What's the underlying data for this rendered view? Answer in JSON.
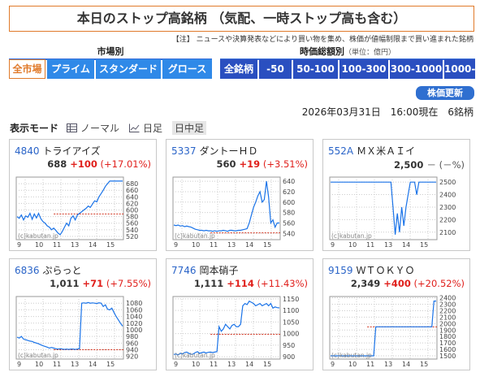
{
  "title": "本日のストップ高銘柄 （気配、一時ストップ高も含む）",
  "note": "【注】 ニュースや決算発表などにより買い物を集め、株価が値幅制限まで買い進まれた銘柄",
  "market": {
    "heading": "市場別",
    "buttons": [
      "全市場",
      "プライム",
      "スタンダード",
      "グロース"
    ],
    "active": 0
  },
  "marketcap": {
    "heading": "時価総額別",
    "unit": "（単位：億円）",
    "buttons": [
      "全銘柄",
      "-50",
      "50-100",
      "100-300",
      "300-1000",
      "1000-"
    ]
  },
  "refresh_label": "株価更新",
  "datetime": "2026年03月31日　16:00現在　6銘柄",
  "mode": {
    "label": "表示モード",
    "options": [
      "ノーマル",
      "日足",
      "日中足"
    ],
    "selected": 2
  },
  "colors": {
    "line": "#1a73e8",
    "ref": "#d0301c",
    "up": "#e0201c",
    "accent": "#e07a2a"
  },
  "x_ticks": [
    "9",
    "10",
    "11",
    "13",
    "14",
    "15"
  ],
  "watermark": "(c)kabutan.jp",
  "stocks": [
    {
      "code": "4840",
      "name": "トライアイズ",
      "price": "688",
      "change": "+100",
      "pct": "(+17.01%)",
      "chart_data": {
        "type": "line",
        "ylim": [
          510,
          700
        ],
        "yticks": [
          520,
          540,
          560,
          580,
          600,
          620,
          640,
          660,
          680
        ],
        "ref": 588,
        "values": [
          580,
          575,
          585,
          570,
          582,
          578,
          590,
          572,
          588,
          576,
          590,
          574,
          565,
          560,
          552,
          548,
          540,
          545,
          538,
          530,
          525,
          535,
          548,
          560,
          552,
          575,
          582,
          570,
          585,
          590,
          595,
          600,
          605,
          612,
          608,
          618,
          628,
          625,
          640,
          650,
          660,
          672,
          680,
          688,
          688,
          688,
          688,
          688,
          688,
          688
        ]
      }
    },
    {
      "code": "5337",
      "name": "ダントーＨＤ",
      "price": "560",
      "change": "+19",
      "pct": "(+3.51%)",
      "chart_data": {
        "type": "line",
        "ylim": [
          528,
          648
        ],
        "yticks": [
          540,
          560,
          580,
          600,
          620,
          640
        ],
        "ref": 541,
        "values": [
          556,
          555,
          556,
          554,
          555,
          553,
          554,
          553,
          552,
          550,
          548,
          547,
          546,
          546,
          545,
          546,
          545,
          545,
          544,
          545,
          544,
          545,
          545,
          546,
          545,
          544,
          546,
          546,
          545,
          545,
          546,
          546,
          547,
          548,
          549,
          560,
          575,
          590,
          600,
          612,
          620,
          600,
          605,
          640,
          610,
          560,
          566,
          552,
          560,
          560
        ]
      }
    },
    {
      "code": "552A",
      "name": "ＭＸ米ＡＩイ",
      "price": "2,500",
      "change": "－",
      "pct": "(－%)",
      "chart_data": {
        "type": "line",
        "ylim": [
          2040,
          2540
        ],
        "yticks": [
          2100,
          2200,
          2300,
          2400,
          2500
        ],
        "ref": null,
        "values": [
          2500,
          2500,
          2500,
          2500,
          2500,
          2500,
          2500,
          2500,
          2500,
          2500,
          2500,
          2500,
          2500,
          2500,
          2500,
          2500,
          2500,
          2500,
          2500,
          2500,
          2500,
          2500,
          2500,
          2500,
          2500,
          2500,
          2500,
          2500,
          2500,
          2300,
          2080,
          2250,
          2100,
          2300,
          2150,
          2300,
          2400,
          2500,
          2500,
          2500,
          2400,
          2500,
          2500,
          2500,
          2500,
          2500,
          2500,
          2500,
          2500,
          2500
        ]
      }
    },
    {
      "code": "6836",
      "name": "ぷらっと",
      "price": "1,011",
      "change": "+71",
      "pct": "(+7.55%)",
      "chart_data": {
        "type": "line",
        "ylim": [
          912,
          1100
        ],
        "yticks": [
          920,
          940,
          960,
          980,
          1000,
          1020,
          1040,
          1060,
          1080
        ],
        "ref": 940,
        "values": [
          978,
          975,
          980,
          972,
          970,
          968,
          966,
          965,
          962,
          960,
          958,
          955,
          952,
          950,
          948,
          945,
          947,
          945,
          943,
          942,
          943,
          942,
          941,
          942,
          941,
          942,
          942,
          941,
          942,
          943,
          1080,
          1081,
          1080,
          1082,
          1080,
          1081,
          1080,
          1079,
          1081,
          1080,
          1070,
          1075,
          1062,
          1060,
          1065,
          1052,
          1040,
          1030,
          1020,
          1011
        ]
      }
    },
    {
      "code": "7746",
      "name": "岡本硝子",
      "price": "1,111",
      "change": "+114",
      "pct": "(+11.43%)",
      "chart_data": {
        "type": "line",
        "ylim": [
          890,
          1160
        ],
        "yticks": [
          900,
          950,
          1000,
          1050,
          1100,
          1150
        ],
        "ref": 997,
        "values": [
          910,
          912,
          908,
          915,
          912,
          918,
          920,
          915,
          910,
          912,
          918,
          922,
          915,
          918,
          920,
          916,
          919,
          920,
          918,
          920,
          922,
          1030,
          1010,
          1020,
          1040,
          1030,
          1020,
          1035,
          1040,
          1030,
          1030,
          1040,
          1120,
          1130,
          1125,
          1140,
          1135,
          1130,
          1120,
          1125,
          1130,
          1120,
          1125,
          1130,
          1120,
          1130,
          1110,
          1115,
          1112,
          1111
        ]
      }
    },
    {
      "code": "9159",
      "name": "ＷＴＯＫＹＯ",
      "price": "2,349",
      "change": "+400",
      "pct": "(+20.52%)",
      "chart_data": {
        "type": "line",
        "ylim": [
          1450,
          2420
        ],
        "yticks": [
          1500,
          1600,
          1700,
          1800,
          1900,
          2000,
          2100,
          2200,
          2300,
          2400
        ],
        "ref": 1949,
        "values": [
          1500,
          1500,
          1500,
          1500,
          1500,
          1500,
          1500,
          1500,
          1500,
          1500,
          1500,
          1500,
          1500,
          1500,
          1500,
          1500,
          1500,
          1500,
          1500,
          1500,
          1500,
          1950,
          1950,
          1950,
          1950,
          1950,
          1950,
          1950,
          1950,
          1950,
          1950,
          1950,
          1950,
          1950,
          1950,
          1950,
          1950,
          1950,
          1950,
          1950,
          1950,
          1950,
          1950,
          1950,
          1950,
          1950,
          1950,
          1950,
          2349,
          2349
        ]
      }
    }
  ]
}
